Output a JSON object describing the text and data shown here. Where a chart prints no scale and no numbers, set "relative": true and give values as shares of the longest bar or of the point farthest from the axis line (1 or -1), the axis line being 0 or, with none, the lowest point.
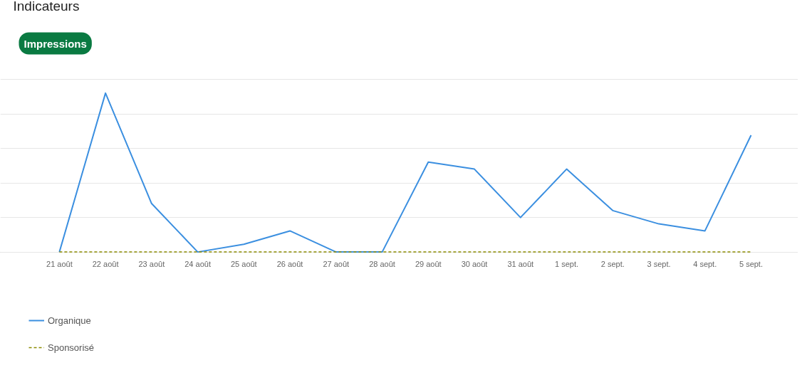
{
  "chart_data": {
    "type": "line",
    "title": "Indicateurs",
    "annotations": [
      "Impressions"
    ],
    "relative": true,
    "categories": [
      "21 août",
      "22 août",
      "23 août",
      "24 août",
      "25 août",
      "26 août",
      "27 août",
      "28 août",
      "29 août",
      "30 août",
      "31 août",
      "1 sept.",
      "2 sept.",
      "3 sept.",
      "4 sept.",
      "5 sept."
    ],
    "series": [
      {
        "name": "Organique",
        "color": "#3b8fe0",
        "line_style": "solid",
        "values": [
          0,
          1,
          0.305,
          0,
          0.049,
          0.133,
          0,
          0,
          0.566,
          0.522,
          0.217,
          0.522,
          0.261,
          0.177,
          0.133,
          0.735
        ]
      },
      {
        "name": "Sponsorisé",
        "color": "#8a8a00",
        "line_style": "dashed",
        "values": [
          0,
          0,
          0,
          0,
          0,
          0,
          0,
          0,
          0,
          0,
          0,
          0,
          0,
          0,
          0,
          0
        ]
      }
    ],
    "grid": "y",
    "legend": "bottom left",
    "marker": "none"
  }
}
